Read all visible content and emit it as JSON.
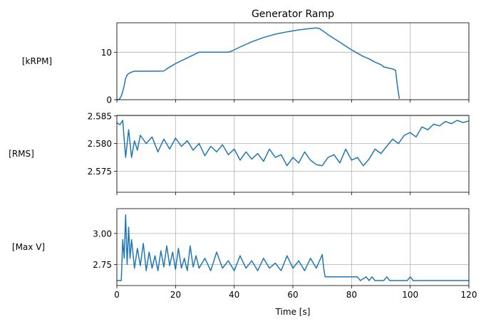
{
  "title": "Generator Ramp",
  "colors": {
    "line": "#1f77b4",
    "grid": "#b0b0b0",
    "axis": "#000000"
  },
  "chart_data": [
    {
      "type": "line",
      "title": "Generator Ramp",
      "ylabel": "[kRPM]",
      "xlim": [
        0,
        120
      ],
      "ylim": [
        0,
        16.2
      ],
      "yticks": [
        0,
        10
      ],
      "ytick_labels": [
        "0",
        "10"
      ],
      "xticks": [
        0,
        20,
        40,
        60,
        80,
        100,
        120
      ],
      "grid": true,
      "show_xtick_labels": false,
      "x": [
        0,
        0.5,
        1,
        1.5,
        2,
        2.5,
        3,
        3.5,
        4,
        5,
        6,
        8,
        12,
        16,
        17,
        20,
        24,
        28,
        30,
        34,
        38,
        39,
        42,
        46,
        50,
        54,
        58,
        62,
        66,
        68,
        69,
        70,
        72,
        74,
        76,
        78,
        80,
        82,
        84,
        86,
        88,
        90,
        91,
        93,
        94,
        95,
        95.6,
        96.3
      ],
      "y": [
        0,
        0,
        0.2,
        0.8,
        1.7,
        3.0,
        4.5,
        5.2,
        5.5,
        5.8,
        6.0,
        6.0,
        6.0,
        6.05,
        6.5,
        7.6,
        8.8,
        10.0,
        10.0,
        10.0,
        10.0,
        10.2,
        11.1,
        12.2,
        13.1,
        13.8,
        14.3,
        14.7,
        15.0,
        15.1,
        15.0,
        14.6,
        13.7,
        12.9,
        12.1,
        11.3,
        10.5,
        9.8,
        9.1,
        8.6,
        7.9,
        7.4,
        6.9,
        6.6,
        6.5,
        6.2,
        3.0,
        0.2
      ]
    },
    {
      "type": "line",
      "ylabel": "[RMS]",
      "xlim": [
        0,
        120
      ],
      "ylim": [
        2.5712,
        2.5851
      ],
      "yticks": [
        2.575,
        2.58,
        2.585
      ],
      "ytick_labels": [
        "2.575",
        "2.580",
        "2.585"
      ],
      "xticks": [
        0,
        20,
        40,
        60,
        80,
        100,
        120
      ],
      "grid": true,
      "show_xtick_labels": false,
      "x": [
        0,
        1,
        2,
        3,
        4,
        5,
        6,
        7,
        8,
        10,
        12,
        14,
        16,
        18,
        20,
        22,
        24,
        26,
        28,
        30,
        32,
        34,
        36,
        38,
        40,
        42,
        44,
        46,
        48,
        50,
        52,
        54,
        56,
        58,
        60,
        62,
        64,
        66,
        68,
        70,
        72,
        74,
        76,
        78,
        80,
        82,
        84,
        86,
        88,
        90,
        92,
        94,
        96,
        98,
        100,
        102,
        104,
        106,
        108,
        110,
        112,
        114,
        116,
        118,
        120
      ],
      "y": [
        2.5838,
        2.5834,
        2.5842,
        2.5775,
        2.5825,
        2.5775,
        2.5805,
        2.5788,
        2.5815,
        2.58,
        2.5812,
        2.5785,
        2.5808,
        2.579,
        2.581,
        2.5795,
        2.5805,
        2.5788,
        2.58,
        2.5778,
        2.5795,
        2.5785,
        2.5798,
        2.578,
        2.579,
        2.577,
        2.5785,
        2.5772,
        2.5782,
        2.5768,
        2.579,
        2.5775,
        2.578,
        2.576,
        2.5775,
        2.5765,
        2.5785,
        2.577,
        2.5762,
        2.576,
        2.5775,
        2.578,
        2.5765,
        2.579,
        2.577,
        2.5775,
        2.576,
        2.5772,
        2.579,
        2.5782,
        2.5795,
        2.5808,
        2.58,
        2.5815,
        2.582,
        2.5812,
        2.583,
        2.5825,
        2.5835,
        2.5832,
        2.584,
        2.5836,
        2.5842,
        2.5838,
        2.5841
      ]
    },
    {
      "type": "line",
      "ylabel": "[Max V]",
      "xlim": [
        0,
        120
      ],
      "ylim": [
        2.58,
        3.2
      ],
      "yticks": [
        2.75,
        3.0
      ],
      "ytick_labels": [
        "2.75",
        "3.00"
      ],
      "xticks": [
        0,
        20,
        40,
        60,
        80,
        100,
        120
      ],
      "xtick_labels": [
        "0",
        "20",
        "40",
        "60",
        "80",
        "100",
        "120"
      ],
      "xlabel": "Time [s]",
      "grid": true,
      "show_xtick_labels": true,
      "x": [
        0,
        1.5,
        2,
        2.5,
        3,
        3.5,
        4,
        4.5,
        5,
        6,
        7,
        8,
        9,
        10,
        11,
        12,
        13,
        14,
        15,
        16,
        17,
        18,
        19,
        20,
        21,
        22,
        23,
        24,
        25,
        26,
        27,
        28,
        30,
        32,
        34,
        36,
        38,
        40,
        42,
        44,
        46,
        48,
        50,
        52,
        54,
        56,
        58,
        60,
        62,
        64,
        66,
        68,
        70,
        70.5,
        71,
        82,
        83,
        85,
        86,
        87,
        88,
        89,
        91,
        92,
        93,
        99,
        100,
        101,
        120
      ],
      "y": [
        2.62,
        2.62,
        2.95,
        2.8,
        3.15,
        2.75,
        3.05,
        2.8,
        2.95,
        2.72,
        2.88,
        2.74,
        2.92,
        2.7,
        2.85,
        2.72,
        2.82,
        2.7,
        2.86,
        2.73,
        2.9,
        2.74,
        2.85,
        2.71,
        2.88,
        2.72,
        2.8,
        2.7,
        2.9,
        2.73,
        2.82,
        2.72,
        2.8,
        2.7,
        2.85,
        2.72,
        2.78,
        2.7,
        2.82,
        2.72,
        2.78,
        2.7,
        2.8,
        2.72,
        2.76,
        2.7,
        2.82,
        2.72,
        2.78,
        2.7,
        2.8,
        2.72,
        2.83,
        2.72,
        2.65,
        2.65,
        2.62,
        2.65,
        2.62,
        2.65,
        2.62,
        2.62,
        2.62,
        2.65,
        2.62,
        2.62,
        2.65,
        2.62,
        2.62
      ]
    }
  ]
}
